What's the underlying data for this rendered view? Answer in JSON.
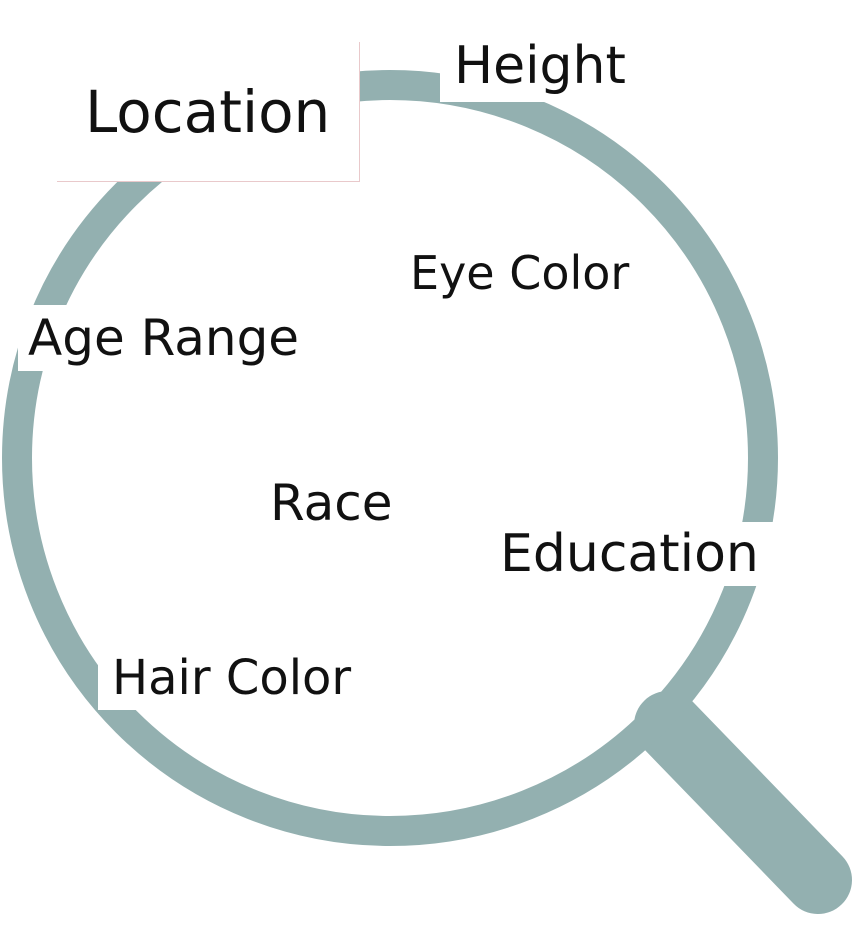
{
  "diagram": {
    "ring_color": "#93b0b0",
    "icon": "magnifying-glass-icon",
    "labels": {
      "location": "Location",
      "height": "Height",
      "eye_color": "Eye Color",
      "age_range": "Age Range",
      "race": "Race",
      "education": "Education",
      "hair_color": "Hair Color"
    }
  }
}
